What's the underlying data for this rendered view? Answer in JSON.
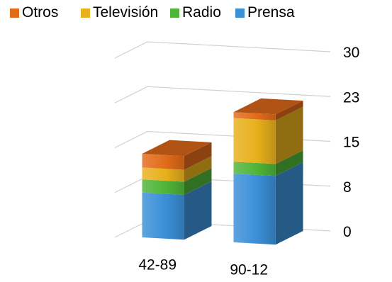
{
  "chart_data": {
    "type": "bar",
    "stacked": true,
    "three_d": true,
    "categories": [
      "42-89",
      "90-12"
    ],
    "series": [
      {
        "name": "Prensa",
        "values": [
          7.5,
          11.5
        ]
      },
      {
        "name": "Radio",
        "values": [
          2.2,
          2.0
        ]
      },
      {
        "name": "Televisión",
        "values": [
          2.0,
          7.3
        ]
      },
      {
        "name": "Otros",
        "values": [
          2.3,
          1.0
        ]
      }
    ],
    "y_ticks": [
      "0",
      "8",
      "15",
      "23",
      "30"
    ],
    "ylim": [
      0,
      30
    ],
    "legend_position": "top",
    "legend_order": [
      "Otros",
      "Televisión",
      "Radio",
      "Prensa"
    ],
    "colors": {
      "Prensa": "#3b8fd8",
      "Radio": "#4fb538",
      "Televisión": "#e8b01c",
      "Otros": "#e26b1a"
    },
    "grid": true
  }
}
